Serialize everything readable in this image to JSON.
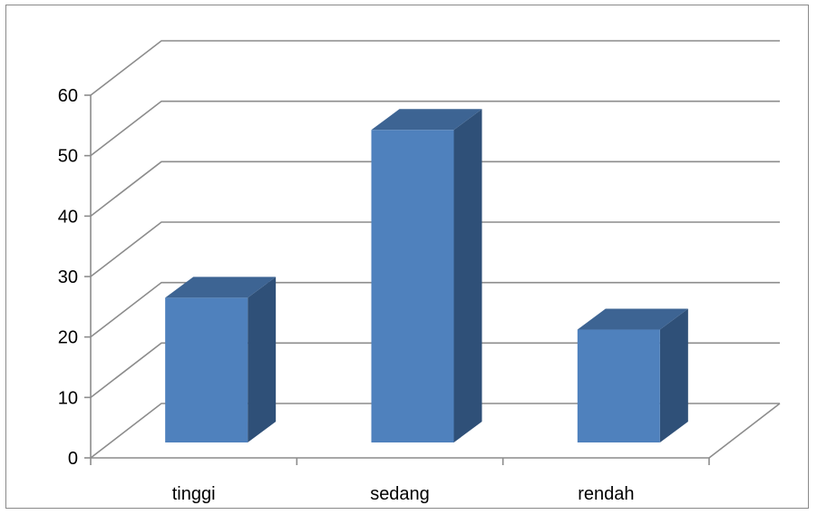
{
  "chart_data": {
    "type": "bar",
    "categories": [
      "tinggi",
      "sedang",
      "rendah"
    ],
    "values": [
      25,
      54,
      19.5
    ],
    "ylim": [
      0,
      60
    ],
    "yticks": [
      0,
      10,
      20,
      30,
      40,
      50,
      60
    ],
    "grid": true,
    "style": "3d-column",
    "colors": {
      "front": "#4f81bd",
      "top": "#3d6493",
      "side": "#2f5078",
      "grid": "#8c8c8c"
    }
  }
}
